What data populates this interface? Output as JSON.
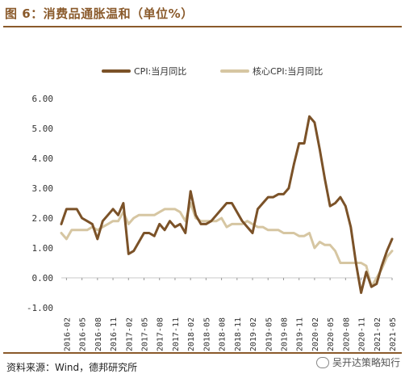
{
  "header": {
    "title": "图 6：消费品通胀温和（单位%）"
  },
  "footer": {
    "source": "资料来源：Wind，德邦研究所",
    "watermark": "吴开达策略知行"
  },
  "chart_data": {
    "type": "line",
    "ylim": [
      -1.0,
      6.0
    ],
    "yticks": [
      "6.00",
      "5.00",
      "4.00",
      "3.00",
      "2.00",
      "1.00",
      "0.00",
      "-1.00"
    ],
    "yticks_values": [
      6,
      5,
      4,
      3,
      2,
      1,
      0,
      -1
    ],
    "xticks": [
      "2016-02",
      "2016-05",
      "2016-08",
      "2016-11",
      "2017-02",
      "2017-05",
      "2017-08",
      "2017-11",
      "2018-02",
      "2018-05",
      "2018-08",
      "2018-11",
      "2019-02",
      "2019-05",
      "2019-08",
      "2019-11",
      "2020-02",
      "2020-05",
      "2020-08",
      "2020-11",
      "2021-02",
      "2021-05"
    ],
    "legend_position": "top",
    "colors": {
      "cpi": "#7b5228",
      "core": "#d6c6a2"
    },
    "x": [
      "2016-01",
      "2016-02",
      "2016-03",
      "2016-04",
      "2016-05",
      "2016-06",
      "2016-07",
      "2016-08",
      "2016-09",
      "2016-10",
      "2016-11",
      "2016-12",
      "2017-01",
      "2017-02",
      "2017-03",
      "2017-04",
      "2017-05",
      "2017-06",
      "2017-07",
      "2017-08",
      "2017-09",
      "2017-10",
      "2017-11",
      "2017-12",
      "2018-01",
      "2018-02",
      "2018-03",
      "2018-04",
      "2018-05",
      "2018-06",
      "2018-07",
      "2018-08",
      "2018-09",
      "2018-10",
      "2018-11",
      "2018-12",
      "2019-01",
      "2019-02",
      "2019-03",
      "2019-04",
      "2019-05",
      "2019-06",
      "2019-07",
      "2019-08",
      "2019-09",
      "2019-10",
      "2019-11",
      "2019-12",
      "2020-01",
      "2020-02",
      "2020-03",
      "2020-04",
      "2020-05",
      "2020-06",
      "2020-07",
      "2020-08",
      "2020-09",
      "2020-10",
      "2020-11",
      "2020-12",
      "2021-01",
      "2021-02",
      "2021-03",
      "2021-04",
      "2021-05"
    ],
    "series": [
      {
        "name": "CPI:当月同比",
        "values": [
          1.8,
          2.3,
          2.3,
          2.3,
          2.0,
          1.9,
          1.8,
          1.3,
          1.9,
          2.1,
          2.3,
          2.1,
          2.5,
          0.8,
          0.9,
          1.2,
          1.5,
          1.5,
          1.4,
          1.8,
          1.6,
          1.9,
          1.7,
          1.8,
          1.5,
          2.9,
          2.1,
          1.8,
          1.8,
          1.9,
          2.1,
          2.3,
          2.5,
          2.5,
          2.2,
          1.9,
          1.7,
          1.5,
          2.3,
          2.5,
          2.7,
          2.7,
          2.8,
          2.8,
          3.0,
          3.8,
          4.5,
          4.5,
          5.4,
          5.2,
          4.3,
          3.3,
          2.4,
          2.5,
          2.7,
          2.4,
          1.7,
          0.5,
          -0.5,
          0.2,
          -0.3,
          -0.2,
          0.4,
          0.9,
          1.3
        ]
      },
      {
        "name": "核心CPI:当月同比",
        "values": [
          1.5,
          1.3,
          1.6,
          1.6,
          1.6,
          1.6,
          1.7,
          1.6,
          1.7,
          1.8,
          1.9,
          1.9,
          2.2,
          1.8,
          2.0,
          2.1,
          2.1,
          2.1,
          2.1,
          2.2,
          2.3,
          2.3,
          2.3,
          2.2,
          1.9,
          2.5,
          2.0,
          1.9,
          1.9,
          1.9,
          1.9,
          2.0,
          1.7,
          1.8,
          1.8,
          1.8,
          1.9,
          1.8,
          1.7,
          1.7,
          1.6,
          1.6,
          1.6,
          1.5,
          1.5,
          1.5,
          1.4,
          1.4,
          1.5,
          1.0,
          1.2,
          1.1,
          1.1,
          0.9,
          0.5,
          0.5,
          0.5,
          0.5,
          0.5,
          0.4,
          -0.3,
          0.0,
          0.3,
          0.7,
          0.9
        ]
      }
    ]
  }
}
